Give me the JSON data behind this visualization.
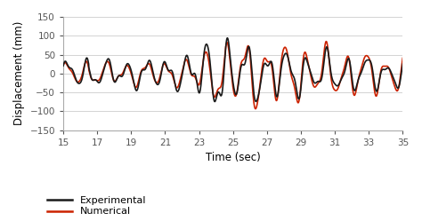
{
  "title": "",
  "xlabel": "Time (sec)",
  "ylabel": "Displacement (mm)",
  "xlim": [
    15,
    35
  ],
  "ylim": [
    -150,
    150
  ],
  "xticks": [
    15,
    17,
    19,
    21,
    23,
    25,
    27,
    29,
    31,
    33,
    35
  ],
  "yticks": [
    -150,
    -100,
    -50,
    0,
    50,
    100,
    150
  ],
  "exp_color": "#1a1a1a",
  "num_color": "#cc2200",
  "exp_linewidth": 1.2,
  "num_linewidth": 1.2,
  "legend_labels": [
    "Experimental",
    "Numerical"
  ],
  "background_color": "#ffffff",
  "grid_color": "#cccccc",
  "fig_width": 4.74,
  "fig_height": 2.49,
  "dpi": 100
}
